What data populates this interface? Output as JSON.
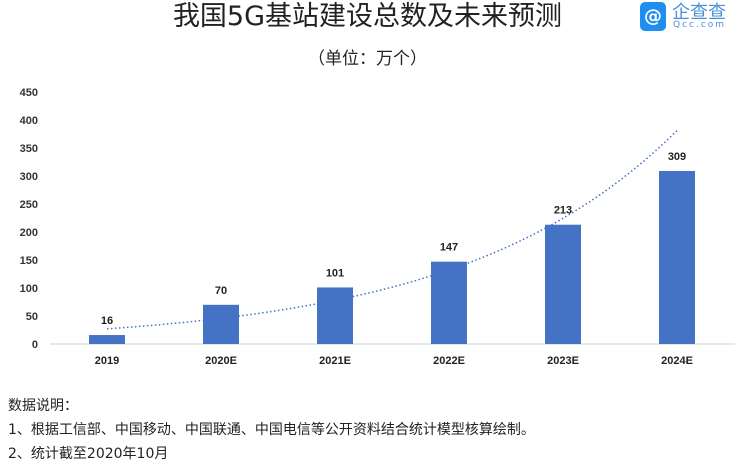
{
  "chart_data": {
    "type": "bar",
    "title": "我国5G基站建设总数及未来预测",
    "subtitle": "（单位：万个）",
    "categories": [
      "2019",
      "2020E",
      "2021E",
      "2022E",
      "2023E",
      "2024E"
    ],
    "values": [
      16,
      70,
      101,
      147,
      213,
      309
    ],
    "data_labels": [
      "16",
      "70",
      "101",
      "147",
      "213",
      "309"
    ],
    "ylim": [
      0,
      450
    ],
    "yticks": [
      "0",
      "50",
      "100",
      "150",
      "200",
      "250",
      "300",
      "350",
      "400",
      "450"
    ],
    "grid": false,
    "legend": "none",
    "trendline": {
      "type": "exponential",
      "style": "dotted",
      "color": "#4472c4"
    },
    "bar_color": "#4472c4"
  },
  "logo": {
    "text_cn": "企查查",
    "text_en": "Qcc.com",
    "color": "#1e8ff0"
  },
  "notes": {
    "heading": "数据说明：",
    "lines": [
      "1、根据工信部、中国移动、中国联通、中国电信等公开资料结合统计模型核算绘制。",
      "2、统计截至2020年10月"
    ]
  }
}
